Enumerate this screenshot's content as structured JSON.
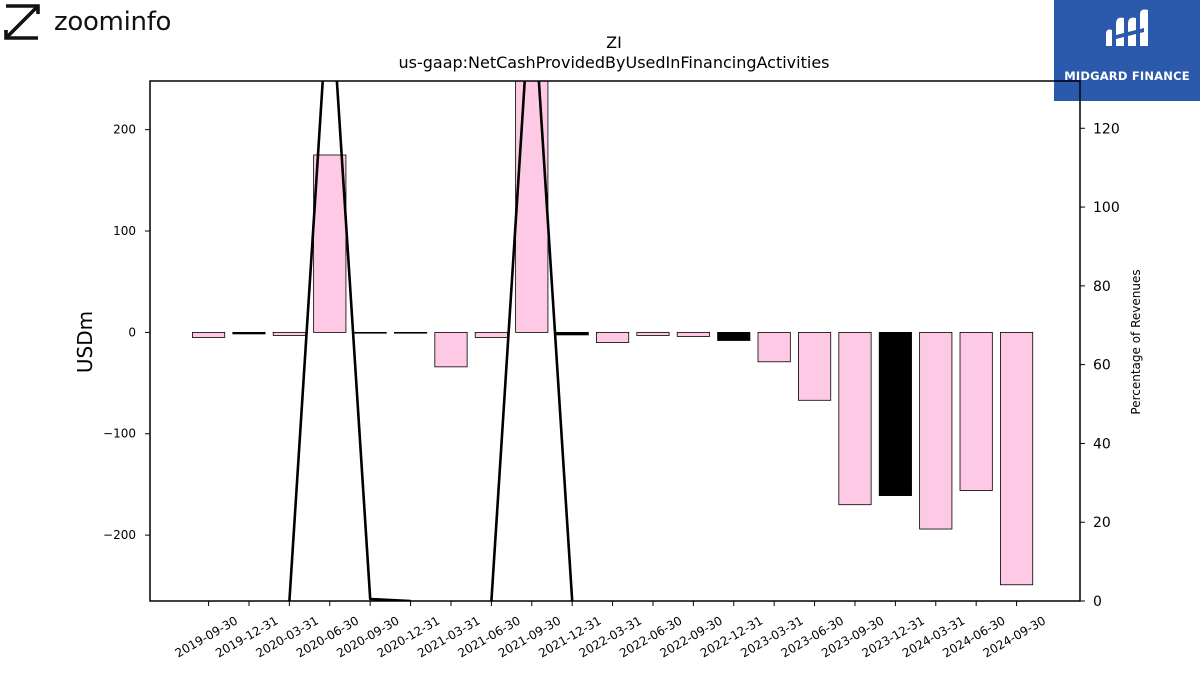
{
  "header": {
    "brand": "zoominfo",
    "partner": "MIDGARD FINANCE"
  },
  "colors": {
    "bar_default": "#FDC9E4",
    "bar_highlight": "#000000",
    "line": "#000000",
    "partner_bg": "#2B59AB"
  },
  "chart_data": {
    "type": "bar",
    "title": "ZI",
    "subtitle": "us-gaap:NetCashProvidedByUsedInFinancingActivities",
    "ylabel": "USDm",
    "y2label": "Percentage of Revenues",
    "ylim": [
      -265,
      248
    ],
    "y2lim": [
      0,
      132
    ],
    "yticks": [
      -200,
      -100,
      0,
      100,
      200
    ],
    "y2ticks": [
      0,
      20,
      40,
      60,
      80,
      100,
      120
    ],
    "categories": [
      "2019-09-30",
      "2019-12-31",
      "2020-03-31",
      "2020-06-30",
      "2020-09-30",
      "2020-12-31",
      "2021-03-31",
      "2021-06-30",
      "2021-09-30",
      "2021-12-31",
      "2022-03-31",
      "2022-06-30",
      "2022-09-30",
      "2022-12-31",
      "2023-03-31",
      "2023-06-30",
      "2023-09-30",
      "2023-12-31",
      "2024-03-31",
      "2024-06-30",
      "2024-09-30"
    ],
    "values": [
      -5,
      -1.5,
      -3,
      175,
      -0.5,
      -0.5,
      -34,
      -5,
      268,
      -2.5,
      -10,
      -3,
      -4,
      -8,
      -29,
      -67,
      -170,
      -161,
      -194,
      -156,
      -249
    ],
    "highlight": [
      false,
      true,
      false,
      false,
      false,
      false,
      false,
      false,
      false,
      true,
      false,
      false,
      false,
      true,
      false,
      false,
      false,
      true,
      false,
      false,
      false
    ],
    "line_values": [
      null,
      null,
      0,
      160,
      0.5,
      0,
      null,
      0,
      160,
      0,
      null,
      null,
      null,
      null,
      null,
      null,
      null,
      null,
      null,
      null,
      null
    ]
  }
}
